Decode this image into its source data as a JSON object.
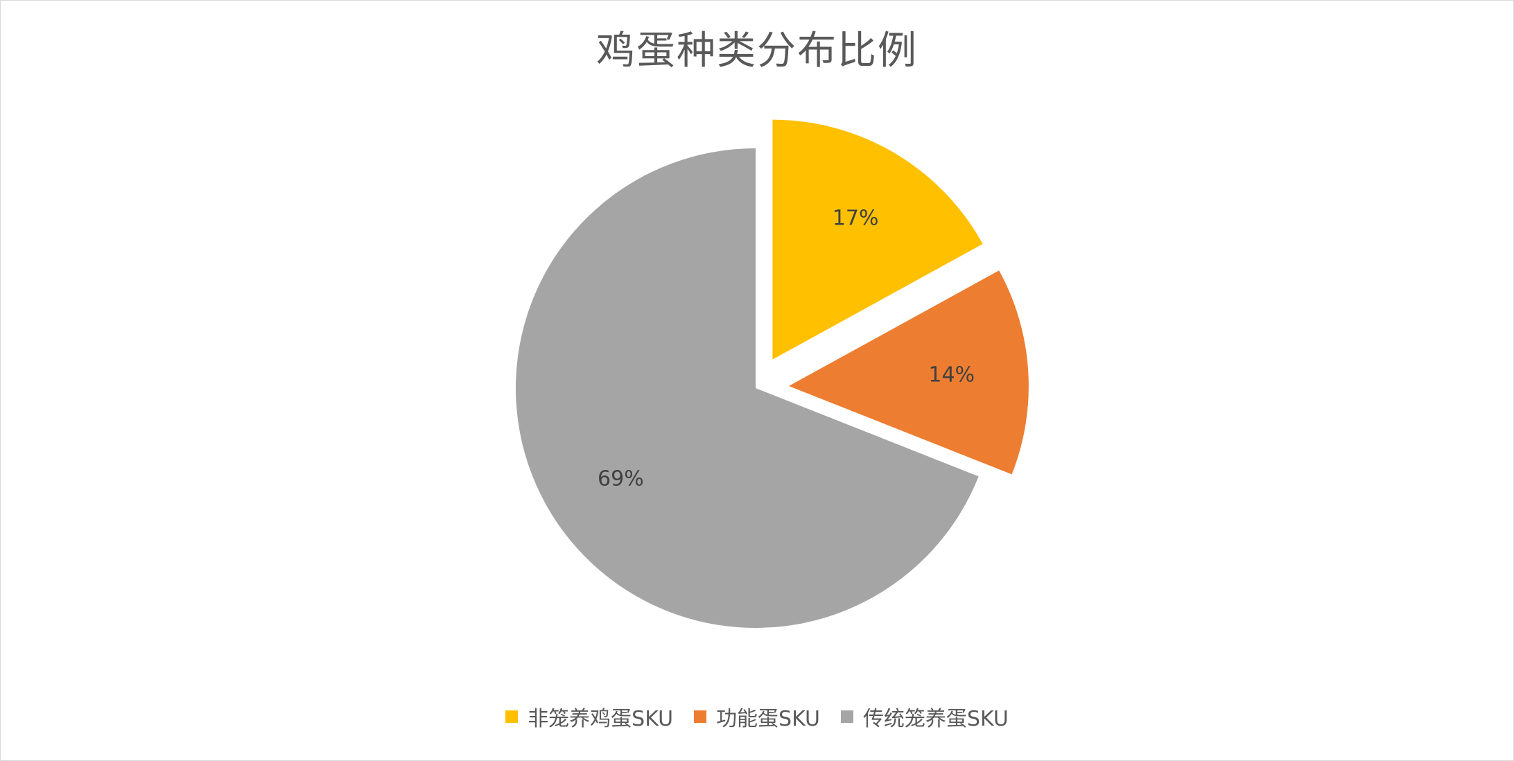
{
  "chart_data": {
    "type": "pie",
    "title": "鸡蛋种类分布比例",
    "categories": [
      "非笼养鸡蛋SKU",
      "功能蛋SKU",
      "传统笼养蛋SKU"
    ],
    "values": [
      17,
      14,
      69
    ],
    "data_labels": [
      "17%",
      "14%",
      "69%"
    ],
    "colors": [
      "#FFC000",
      "#ED7D31",
      "#A5A5A5"
    ],
    "exploded": [
      true,
      true,
      false
    ],
    "legend_position": "bottom"
  }
}
